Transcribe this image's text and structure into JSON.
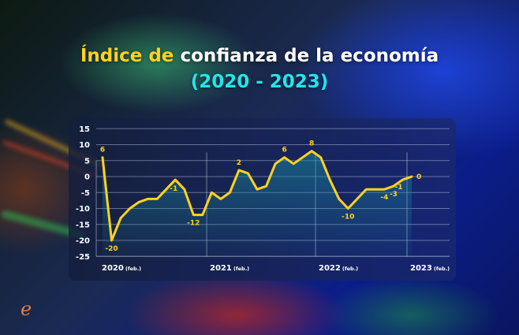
{
  "title": {
    "highlight": "Índice de",
    "rest": "confianza de la economía",
    "subtitle": "(2020 - 2023)"
  },
  "logo": {
    "glyph": "e",
    "icon": "elcomercio-e-logo-icon"
  },
  "colors": {
    "line": "#ffd21f",
    "title_highlight": "#ffd21f",
    "subtitle": "#22e6ee",
    "logo": "#f07a3c"
  },
  "chart_data": {
    "type": "line",
    "title": "Índice de confianza de la economía (2020 - 2023)",
    "xlabel": "",
    "ylabel": "",
    "ylim": [
      -25,
      15
    ],
    "yticks": [
      15,
      10,
      5,
      0,
      -5,
      -10,
      -15,
      -20,
      -25
    ],
    "xtick_labels": [
      {
        "year": "2020",
        "suffix": "(feb.)"
      },
      {
        "year": "2021",
        "suffix": "(feb.)"
      },
      {
        "year": "2022",
        "suffix": "(feb.)"
      },
      {
        "year": "2023",
        "suffix": "(feb.)"
      }
    ],
    "grid": true,
    "legend": "none",
    "series": [
      {
        "name": "Índice de confianza",
        "values": [
          6,
          -20,
          -13,
          -10,
          -8,
          -7,
          -7,
          -4,
          -1,
          -4,
          -12,
          -12,
          -5,
          -7,
          -5,
          2,
          1,
          -4,
          -3,
          4,
          6,
          4,
          6,
          8,
          6,
          -1,
          -7,
          -10,
          -7,
          -4,
          -4,
          -4,
          -3,
          -1,
          0
        ]
      }
    ],
    "data_labels": [
      {
        "index": 0,
        "text": "6"
      },
      {
        "index": 1,
        "text": "-20"
      },
      {
        "index": 8,
        "text": "-1"
      },
      {
        "index": 10,
        "text": "-12"
      },
      {
        "index": 15,
        "text": "2"
      },
      {
        "index": 20,
        "text": "6"
      },
      {
        "index": 23,
        "text": "8"
      },
      {
        "index": 27,
        "text": "-10"
      },
      {
        "index": 31,
        "text": "-4"
      },
      {
        "index": 32,
        "text": "-3"
      },
      {
        "index": 33,
        "text": "-1"
      },
      {
        "index": 34,
        "text": "0"
      }
    ]
  }
}
